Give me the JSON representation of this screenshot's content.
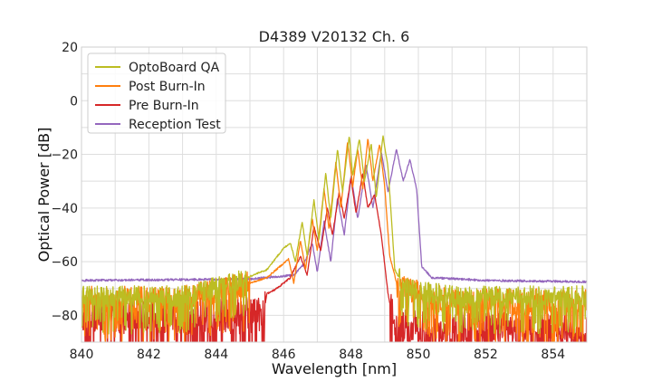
{
  "chart_data": {
    "type": "line",
    "title": "D4389 V20132 Ch. 6",
    "xlabel": "Wavelength [nm]",
    "ylabel": "Optical Power [dB]",
    "xlim": [
      840,
      855
    ],
    "ylim": [
      -90,
      20
    ],
    "x_ticks": [
      "840",
      "842",
      "844",
      "846",
      "848",
      "850",
      "852",
      "854"
    ],
    "x_tick_values": [
      840,
      842,
      844,
      846,
      848,
      850,
      852,
      854
    ],
    "y_ticks": [
      "20",
      "0",
      "−20",
      "−40",
      "−60",
      "−80"
    ],
    "y_tick_values": [
      20,
      0,
      -20,
      -40,
      -60,
      -80
    ],
    "grid": true,
    "legend_position": "top-left",
    "series": [
      {
        "name": "OptoBoard QA",
        "color": "#bcbd22",
        "noise_floor": -74,
        "noise_amp": 4,
        "spectrum": [
          [
            840,
            -73
          ],
          [
            843,
            -73
          ],
          [
            844.5,
            -68
          ],
          [
            845.5,
            -63
          ],
          [
            846.0,
            -55
          ],
          [
            846.2,
            -53
          ],
          [
            846.35,
            -60
          ],
          [
            846.55,
            -45
          ],
          [
            846.7,
            -58
          ],
          [
            846.9,
            -37
          ],
          [
            847.05,
            -52
          ],
          [
            847.25,
            -27
          ],
          [
            847.4,
            -44
          ],
          [
            847.6,
            -18
          ],
          [
            847.75,
            -34
          ],
          [
            847.95,
            -13
          ],
          [
            848.05,
            -28
          ],
          [
            848.25,
            -14
          ],
          [
            848.4,
            -30
          ],
          [
            848.6,
            -16
          ],
          [
            848.75,
            -36
          ],
          [
            848.95,
            -13
          ],
          [
            849.1,
            -25
          ],
          [
            849.3,
            -63
          ],
          [
            849.6,
            -70
          ],
          [
            851,
            -73
          ],
          [
            855,
            -73
          ]
        ]
      },
      {
        "name": "Post Burn-In",
        "color": "#ff7f0e",
        "noise_floor": -76,
        "noise_amp": 5,
        "spectrum": [
          [
            840,
            -74
          ],
          [
            843,
            -74
          ],
          [
            844.5,
            -70
          ],
          [
            845.5,
            -66
          ],
          [
            846.15,
            -59
          ],
          [
            846.3,
            -68
          ],
          [
            846.5,
            -52
          ],
          [
            846.65,
            -63
          ],
          [
            846.85,
            -44
          ],
          [
            847.0,
            -56
          ],
          [
            847.2,
            -33
          ],
          [
            847.35,
            -48
          ],
          [
            847.55,
            -23
          ],
          [
            847.7,
            -40
          ],
          [
            847.9,
            -15
          ],
          [
            848.05,
            -32
          ],
          [
            848.2,
            -18
          ],
          [
            848.35,
            -33
          ],
          [
            848.5,
            -14
          ],
          [
            848.65,
            -30
          ],
          [
            848.85,
            -16
          ],
          [
            849.0,
            -32
          ],
          [
            849.15,
            -58
          ],
          [
            849.4,
            -70
          ],
          [
            851,
            -75
          ],
          [
            855,
            -75
          ]
        ]
      },
      {
        "name": "Pre Burn-In",
        "color": "#d62728",
        "noise_floor": -84,
        "noise_amp": 7,
        "spectrum": [
          [
            840,
            -80
          ],
          [
            845.4,
            -80
          ],
          [
            845.5,
            -72
          ],
          [
            845.8,
            -70
          ],
          [
            846.2,
            -66
          ],
          [
            846.5,
            -58
          ],
          [
            846.7,
            -65
          ],
          [
            846.9,
            -47
          ],
          [
            847.1,
            -56
          ],
          [
            847.3,
            -40
          ],
          [
            847.45,
            -50
          ],
          [
            847.65,
            -34
          ],
          [
            847.8,
            -44
          ],
          [
            848.0,
            -29
          ],
          [
            848.15,
            -42
          ],
          [
            848.35,
            -27
          ],
          [
            848.5,
            -40
          ],
          [
            848.7,
            -35
          ],
          [
            848.9,
            -50
          ],
          [
            849.1,
            -72
          ],
          [
            849.3,
            -85
          ],
          [
            855,
            -85
          ]
        ]
      },
      {
        "name": "Reception Test",
        "color": "#9467bd",
        "noise_floor": -67,
        "noise_amp": 0.4,
        "spectrum": [
          [
            840,
            -67
          ],
          [
            845,
            -66.5
          ],
          [
            846.3,
            -65
          ],
          [
            846.6,
            -61
          ],
          [
            846.85,
            -53
          ],
          [
            847.0,
            -64
          ],
          [
            847.2,
            -45
          ],
          [
            847.4,
            -60
          ],
          [
            847.6,
            -36
          ],
          [
            847.8,
            -50
          ],
          [
            848.0,
            -28
          ],
          [
            848.2,
            -44
          ],
          [
            848.45,
            -24
          ],
          [
            848.65,
            -40
          ],
          [
            848.9,
            -19
          ],
          [
            849.1,
            -34
          ],
          [
            849.35,
            -18
          ],
          [
            849.55,
            -30
          ],
          [
            849.75,
            -22
          ],
          [
            849.95,
            -33
          ],
          [
            850.1,
            -62
          ],
          [
            850.4,
            -66
          ],
          [
            852,
            -67
          ],
          [
            855,
            -67.5
          ]
        ]
      }
    ]
  }
}
